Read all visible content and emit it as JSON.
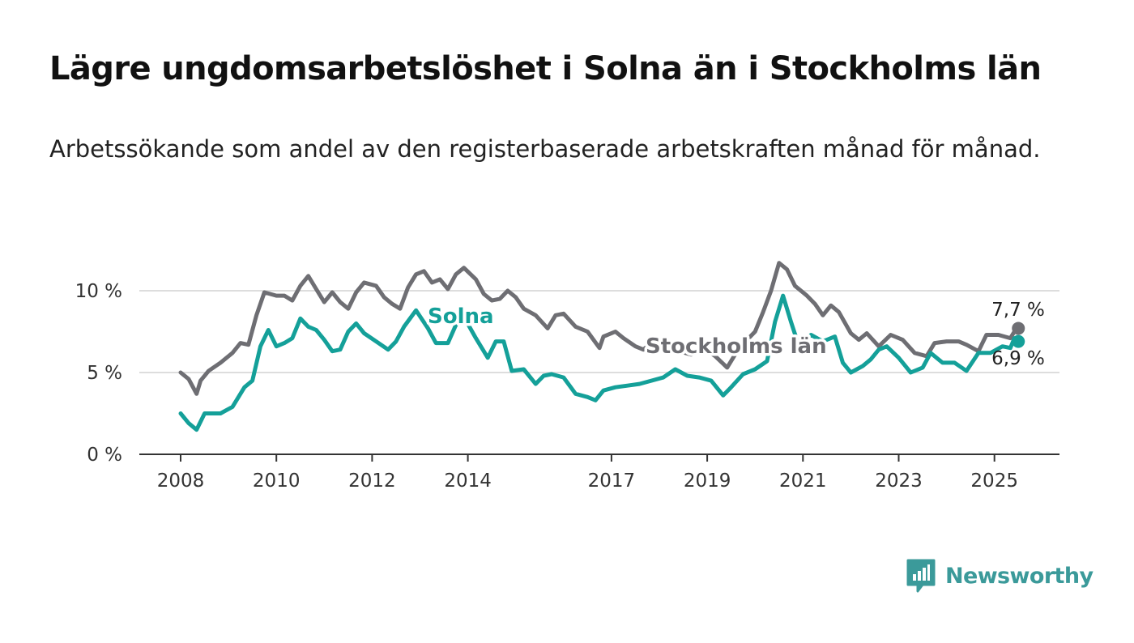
{
  "title": "Lägre ungdomsarbetslöshet i Solna än i Stockholms län",
  "subtitle": "Arbetssökande som andel av den registerbaserade arbetskraften månad för månad.",
  "brand": {
    "name": "Newsworthy",
    "color": "#3b9a9a"
  },
  "colors": {
    "solna": "#14a099",
    "stockholm": "#6e6e73",
    "grid": "#dddddd",
    "axis": "#333333"
  },
  "chart_data": {
    "type": "line",
    "title": "Lägre ungdomsarbetslöshet i Solna än i Stockholms län",
    "subtitle": "Arbetssökande som andel av den registerbaserade arbetskraften månad för månad.",
    "xlabel": "",
    "ylabel": "",
    "x_ticks": [
      "2008",
      "2010",
      "2012",
      "2014",
      "2017",
      "2019",
      "2021",
      "2023",
      "2025"
    ],
    "y_ticks": [
      "0 %",
      "5 %",
      "10 %"
    ],
    "xlim": [
      "2008-01",
      "2025-07"
    ],
    "ylim": [
      0,
      10.5
    ],
    "grid": "horizontal",
    "series": [
      {
        "name": "Stockholms län",
        "color": "#6e6e73",
        "end_label": "7,7 %",
        "points": [
          [
            "2008-01",
            5.0
          ],
          [
            "2008-03",
            4.6
          ],
          [
            "2008-05",
            3.7
          ],
          [
            "2008-06",
            4.5
          ],
          [
            "2008-08",
            5.1
          ],
          [
            "2008-11",
            5.6
          ],
          [
            "2009-02",
            6.2
          ],
          [
            "2009-04",
            6.8
          ],
          [
            "2009-06",
            6.7
          ],
          [
            "2009-08",
            8.5
          ],
          [
            "2009-10",
            9.9
          ],
          [
            "2010-01",
            9.7
          ],
          [
            "2010-03",
            9.7
          ],
          [
            "2010-05",
            9.4
          ],
          [
            "2010-07",
            10.3
          ],
          [
            "2010-09",
            10.9
          ],
          [
            "2010-11",
            10.1
          ],
          [
            "2011-01",
            9.3
          ],
          [
            "2011-03",
            9.9
          ],
          [
            "2011-05",
            9.3
          ],
          [
            "2011-07",
            8.9
          ],
          [
            "2011-09",
            9.9
          ],
          [
            "2011-11",
            10.5
          ],
          [
            "2012-02",
            10.3
          ],
          [
            "2012-04",
            9.6
          ],
          [
            "2012-06",
            9.2
          ],
          [
            "2012-08",
            8.9
          ],
          [
            "2012-10",
            10.2
          ],
          [
            "2012-12",
            11.0
          ],
          [
            "2013-02",
            11.2
          ],
          [
            "2013-04",
            10.5
          ],
          [
            "2013-06",
            10.7
          ],
          [
            "2013-08",
            10.1
          ],
          [
            "2013-10",
            11.0
          ],
          [
            "2013-12",
            11.4
          ],
          [
            "2014-03",
            10.7
          ],
          [
            "2014-05",
            9.8
          ],
          [
            "2014-07",
            9.4
          ],
          [
            "2014-09",
            9.5
          ],
          [
            "2014-11",
            10.0
          ],
          [
            "2015-01",
            9.6
          ],
          [
            "2015-03",
            8.9
          ],
          [
            "2015-06",
            8.5
          ],
          [
            "2015-09",
            7.7
          ],
          [
            "2015-11",
            8.5
          ],
          [
            "2016-01",
            8.6
          ],
          [
            "2016-04",
            7.8
          ],
          [
            "2016-07",
            7.5
          ],
          [
            "2016-10",
            6.5
          ],
          [
            "2016-11",
            7.2
          ],
          [
            "2017-02",
            7.5
          ],
          [
            "2017-04",
            7.1
          ],
          [
            "2017-07",
            6.6
          ],
          [
            "2017-09",
            6.4
          ],
          [
            "2017-12",
            7.0
          ],
          [
            "2018-03",
            6.6
          ],
          [
            "2018-06",
            6.3
          ],
          [
            "2018-09",
            6.1
          ],
          [
            "2018-12",
            6.5
          ],
          [
            "2019-03",
            6.0
          ],
          [
            "2019-06",
            5.3
          ],
          [
            "2019-09",
            6.5
          ],
          [
            "2020-01",
            7.5
          ],
          [
            "2020-03",
            8.7
          ],
          [
            "2020-05",
            10.0
          ],
          [
            "2020-07",
            11.7
          ],
          [
            "2020-09",
            11.3
          ],
          [
            "2020-11",
            10.3
          ],
          [
            "2021-02",
            9.7
          ],
          [
            "2021-04",
            9.2
          ],
          [
            "2021-06",
            8.5
          ],
          [
            "2021-08",
            9.1
          ],
          [
            "2021-10",
            8.7
          ],
          [
            "2022-01",
            7.4
          ],
          [
            "2022-03",
            7.0
          ],
          [
            "2022-05",
            7.4
          ],
          [
            "2022-08",
            6.6
          ],
          [
            "2022-11",
            7.3
          ],
          [
            "2023-02",
            7.0
          ],
          [
            "2023-05",
            6.2
          ],
          [
            "2023-08",
            6.0
          ],
          [
            "2023-10",
            6.8
          ],
          [
            "2024-01",
            6.9
          ],
          [
            "2024-04",
            6.9
          ],
          [
            "2024-06",
            6.7
          ],
          [
            "2024-09",
            6.3
          ],
          [
            "2024-11",
            7.3
          ],
          [
            "2025-02",
            7.3
          ],
          [
            "2025-05",
            7.1
          ],
          [
            "2025-06",
            7.5
          ],
          [
            "2025-07",
            7.7
          ]
        ]
      },
      {
        "name": "Solna",
        "color": "#14a099",
        "end_label": "6,9 %",
        "points": [
          [
            "2008-01",
            2.5
          ],
          [
            "2008-03",
            1.9
          ],
          [
            "2008-05",
            1.5
          ],
          [
            "2008-07",
            2.5
          ],
          [
            "2008-09",
            2.5
          ],
          [
            "2008-11",
            2.5
          ],
          [
            "2009-02",
            2.9
          ],
          [
            "2009-05",
            4.1
          ],
          [
            "2009-07",
            4.5
          ],
          [
            "2009-09",
            6.6
          ],
          [
            "2009-11",
            7.6
          ],
          [
            "2010-01",
            6.6
          ],
          [
            "2010-03",
            6.8
          ],
          [
            "2010-05",
            7.1
          ],
          [
            "2010-07",
            8.3
          ],
          [
            "2010-09",
            7.8
          ],
          [
            "2010-11",
            7.6
          ],
          [
            "2011-01",
            7.0
          ],
          [
            "2011-03",
            6.3
          ],
          [
            "2011-05",
            6.4
          ],
          [
            "2011-07",
            7.5
          ],
          [
            "2011-09",
            8.0
          ],
          [
            "2011-11",
            7.4
          ],
          [
            "2012-02",
            6.9
          ],
          [
            "2012-05",
            6.4
          ],
          [
            "2012-07",
            6.9
          ],
          [
            "2012-09",
            7.8
          ],
          [
            "2012-12",
            8.8
          ],
          [
            "2013-03",
            7.7
          ],
          [
            "2013-05",
            6.8
          ],
          [
            "2013-08",
            6.8
          ],
          [
            "2013-10",
            7.9
          ],
          [
            "2013-12",
            8.4
          ],
          [
            "2014-03",
            7.1
          ],
          [
            "2014-06",
            5.9
          ],
          [
            "2014-08",
            6.9
          ],
          [
            "2014-10",
            6.9
          ],
          [
            "2014-12",
            5.1
          ],
          [
            "2015-03",
            5.2
          ],
          [
            "2015-06",
            4.3
          ],
          [
            "2015-08",
            4.8
          ],
          [
            "2015-10",
            4.9
          ],
          [
            "2016-01",
            4.7
          ],
          [
            "2016-04",
            3.7
          ],
          [
            "2016-07",
            3.5
          ],
          [
            "2016-09",
            3.3
          ],
          [
            "2016-11",
            3.9
          ],
          [
            "2017-02",
            4.1
          ],
          [
            "2017-05",
            4.2
          ],
          [
            "2017-08",
            4.3
          ],
          [
            "2017-11",
            4.5
          ],
          [
            "2018-02",
            4.7
          ],
          [
            "2018-05",
            5.2
          ],
          [
            "2018-08",
            4.8
          ],
          [
            "2018-11",
            4.7
          ],
          [
            "2019-02",
            4.5
          ],
          [
            "2019-05",
            3.6
          ],
          [
            "2019-07",
            4.1
          ],
          [
            "2019-10",
            4.9
          ],
          [
            "2020-01",
            5.2
          ],
          [
            "2020-04",
            5.7
          ],
          [
            "2020-06",
            8.1
          ],
          [
            "2020-08",
            9.7
          ],
          [
            "2020-10",
            8.1
          ],
          [
            "2020-12",
            6.6
          ],
          [
            "2021-03",
            7.3
          ],
          [
            "2021-06",
            6.9
          ],
          [
            "2021-09",
            7.2
          ],
          [
            "2021-11",
            5.6
          ],
          [
            "2022-01",
            5.0
          ],
          [
            "2022-04",
            5.4
          ],
          [
            "2022-06",
            5.8
          ],
          [
            "2022-08",
            6.4
          ],
          [
            "2022-10",
            6.6
          ],
          [
            "2023-01",
            5.9
          ],
          [
            "2023-04",
            5.0
          ],
          [
            "2023-07",
            5.3
          ],
          [
            "2023-09",
            6.2
          ],
          [
            "2023-12",
            5.6
          ],
          [
            "2024-03",
            5.6
          ],
          [
            "2024-06",
            5.1
          ],
          [
            "2024-09",
            6.2
          ],
          [
            "2024-12",
            6.2
          ],
          [
            "2025-03",
            6.6
          ],
          [
            "2025-05",
            6.5
          ],
          [
            "2025-06",
            7.1
          ],
          [
            "2025-07",
            6.9
          ]
        ]
      }
    ]
  }
}
